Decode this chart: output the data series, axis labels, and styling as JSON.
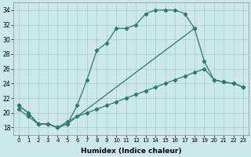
{
  "xlabel": "Humidex (Indice chaleur)",
  "background_color": "#cce8e8",
  "line_color": "#2d7a6e",
  "grid_color": "#aacccc",
  "xlim": [
    -0.5,
    23.5
  ],
  "ylim": [
    17,
    35
  ],
  "xticks": [
    0,
    1,
    2,
    3,
    4,
    5,
    6,
    7,
    8,
    9,
    10,
    11,
    12,
    13,
    14,
    15,
    16,
    17,
    18,
    19,
    20,
    21,
    22,
    23
  ],
  "yticks": [
    18,
    20,
    22,
    24,
    26,
    28,
    30,
    32,
    34
  ],
  "series1_x": [
    0,
    1,
    2,
    3,
    4,
    5,
    6,
    7,
    8,
    9,
    10,
    11,
    12,
    13,
    14,
    15,
    16,
    17,
    18
  ],
  "series1_y": [
    21.0,
    20.0,
    18.5,
    18.5,
    18.0,
    18.5,
    21.0,
    24.5,
    28.5,
    29.5,
    31.5,
    31.5,
    32.0,
    33.5,
    34.0,
    34.0,
    34.0,
    33.5,
    31.5
  ],
  "series2_x": [
    0,
    1,
    2,
    3,
    4,
    5,
    6,
    7,
    8,
    9,
    10,
    11,
    12,
    13,
    14,
    15,
    16,
    17,
    18,
    19,
    20,
    21,
    22,
    23
  ],
  "series2_y": [
    20.5,
    19.5,
    18.5,
    18.5,
    18.0,
    18.8,
    19.5,
    20.0,
    20.5,
    21.0,
    21.5,
    22.0,
    22.5,
    23.0,
    23.5,
    24.0,
    24.5,
    25.0,
    25.5,
    26.0,
    24.5,
    24.2,
    24.0,
    23.5
  ],
  "series3_x": [
    0,
    1,
    2,
    3,
    4,
    5,
    18,
    19,
    20,
    21,
    22,
    23
  ],
  "series3_y": [
    21.0,
    20.0,
    18.5,
    18.5,
    18.0,
    18.5,
    31.5,
    27.0,
    24.5,
    24.2,
    24.0,
    23.5
  ]
}
